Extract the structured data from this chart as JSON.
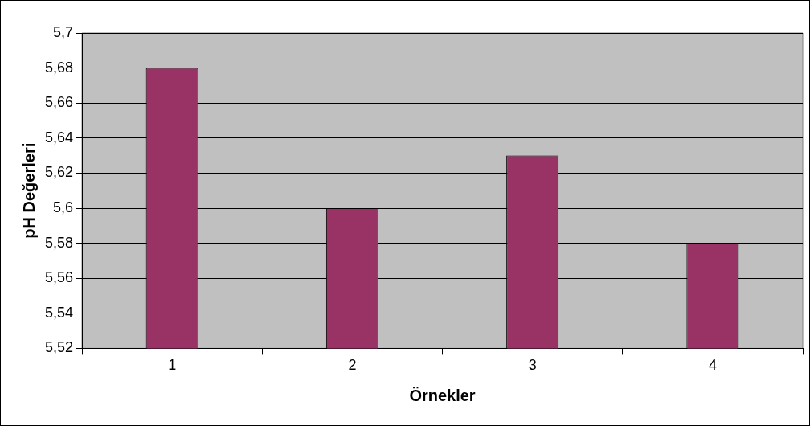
{
  "chart_data": {
    "type": "bar",
    "xlabel": "Örnekler",
    "ylabel": "pH Değerleri",
    "categories": [
      "1",
      "2",
      "3",
      "4"
    ],
    "values": [
      5.68,
      5.6,
      5.63,
      5.58
    ],
    "color": "#993366",
    "ylim": [
      5.52,
      5.7
    ],
    "yticks": [
      {
        "value": 5.52,
        "label": "5,52"
      },
      {
        "value": 5.54,
        "label": "5,54"
      },
      {
        "value": 5.56,
        "label": "5,56"
      },
      {
        "value": 5.58,
        "label": "5,58"
      },
      {
        "value": 5.6,
        "label": "5,6"
      },
      {
        "value": 5.62,
        "label": "5,62"
      },
      {
        "value": 5.64,
        "label": "5,64"
      },
      {
        "value": 5.66,
        "label": "5,66"
      },
      {
        "value": 5.68,
        "label": "5,68"
      },
      {
        "value": 5.7,
        "label": "5,7"
      }
    ],
    "grid": "y",
    "legend": false
  }
}
